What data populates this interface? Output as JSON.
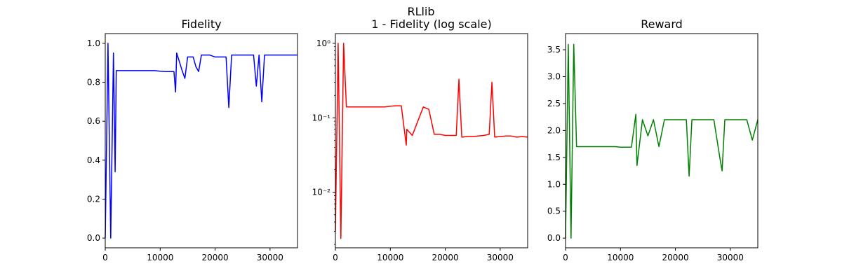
{
  "figure": {
    "suptitle": "RLlib",
    "background": "#ffffff"
  },
  "chart_data": [
    {
      "type": "line",
      "title": "Fidelity",
      "xlabel": "",
      "ylabel": "",
      "xlim": [
        0,
        35000
      ],
      "ylim": [
        -0.05,
        1.05
      ],
      "xscale": "linear",
      "yscale": "linear",
      "grid": false,
      "xticks": [
        0,
        10000,
        20000,
        30000
      ],
      "xtick_labels": [
        "0",
        "10000",
        "20000",
        "30000"
      ],
      "yticks": [
        0.0,
        0.2,
        0.4,
        0.6,
        0.8,
        1.0
      ],
      "ytick_labels": [
        "0.0",
        "0.2",
        "0.4",
        "0.6",
        "0.8",
        "1.0"
      ],
      "series": [
        {
          "color": "#0000ff",
          "x": [
            0,
            500,
            1000,
            1500,
            1800,
            2000,
            3000,
            4000,
            5000,
            6000,
            7000,
            8000,
            9000,
            10000,
            11000,
            12000,
            12500,
            12800,
            13000,
            14000,
            14500,
            15000,
            16000,
            16500,
            17000,
            17500,
            18000,
            19000,
            20000,
            21000,
            22000,
            22500,
            23000,
            24000,
            25000,
            26000,
            27000,
            27500,
            28000,
            28500,
            29000,
            30000,
            31000,
            32000,
            33000,
            34000,
            35000
          ],
          "y": [
            0.0,
            1.0,
            0.0,
            0.95,
            0.34,
            0.86,
            0.86,
            0.86,
            0.86,
            0.86,
            0.86,
            0.86,
            0.86,
            0.857,
            0.855,
            0.855,
            0.855,
            0.75,
            0.95,
            0.86,
            0.82,
            0.93,
            0.93,
            0.88,
            0.855,
            0.94,
            0.94,
            0.94,
            0.93,
            0.93,
            0.93,
            0.67,
            0.94,
            0.94,
            0.94,
            0.94,
            0.94,
            0.78,
            0.94,
            0.7,
            0.94,
            0.94,
            0.94,
            0.94,
            0.94,
            0.94,
            0.94
          ]
        }
      ]
    },
    {
      "type": "line",
      "title": "1 - Fidelity (log scale)",
      "xlabel": "",
      "ylabel": "",
      "xlim": [
        0,
        35000
      ],
      "ylim": [
        0.0018,
        1.35
      ],
      "xscale": "linear",
      "yscale": "log",
      "grid": false,
      "xticks": [
        0,
        10000,
        20000,
        30000
      ],
      "xtick_labels": [
        "0",
        "10000",
        "20000",
        "30000"
      ],
      "yticks": [
        0.01,
        0.1,
        1.0
      ],
      "ytick_labels": [
        "10⁻²",
        "10⁻¹",
        "10⁰"
      ],
      "series": [
        {
          "color": "#ff0000",
          "x": [
            0,
            500,
            1000,
            1500,
            2000,
            3000,
            4000,
            5000,
            6000,
            7000,
            8000,
            9000,
            10000,
            11000,
            12000,
            12900,
            13000,
            14000,
            15000,
            16000,
            17000,
            18000,
            19000,
            20000,
            21000,
            22000,
            22500,
            23000,
            24000,
            25000,
            26000,
            27000,
            28000,
            28500,
            29000,
            30000,
            31000,
            32000,
            33000,
            34000,
            35000
          ],
          "y": [
            0.003,
            1.0,
            0.0024,
            1.0,
            0.14,
            0.14,
            0.14,
            0.14,
            0.14,
            0.14,
            0.14,
            0.14,
            0.143,
            0.145,
            0.145,
            0.043,
            0.07,
            0.058,
            0.09,
            0.14,
            0.13,
            0.06,
            0.06,
            0.058,
            0.058,
            0.058,
            0.33,
            0.055,
            0.056,
            0.056,
            0.057,
            0.058,
            0.06,
            0.3,
            0.055,
            0.056,
            0.057,
            0.057,
            0.055,
            0.056,
            0.055
          ]
        }
      ]
    },
    {
      "type": "line",
      "title": "Reward",
      "xlabel": "",
      "ylabel": "",
      "xlim": [
        0,
        35000
      ],
      "ylim": [
        -0.18,
        3.8
      ],
      "xscale": "linear",
      "yscale": "linear",
      "grid": false,
      "xticks": [
        0,
        10000,
        20000,
        30000
      ],
      "xtick_labels": [
        "0",
        "10000",
        "20000",
        "30000"
      ],
      "yticks": [
        0.0,
        0.5,
        1.0,
        1.5,
        2.0,
        2.5,
        3.0,
        3.5
      ],
      "ytick_labels": [
        "0.0",
        "0.5",
        "1.0",
        "1.5",
        "2.0",
        "2.5",
        "3.0",
        "3.5"
      ],
      "series": [
        {
          "color": "#008000",
          "x": [
            0,
            500,
            1000,
            1500,
            2000,
            3000,
            4000,
            5000,
            6000,
            7000,
            8000,
            9000,
            10000,
            11000,
            12000,
            12800,
            13000,
            14000,
            15000,
            16000,
            17000,
            18000,
            19000,
            20000,
            21000,
            22000,
            22500,
            23000,
            24000,
            25000,
            26000,
            27000,
            28000,
            28500,
            29000,
            30000,
            31000,
            32000,
            33000,
            34000,
            35000
          ],
          "y": [
            0.0,
            3.6,
            0.0,
            3.6,
            1.7,
            1.7,
            1.7,
            1.7,
            1.7,
            1.7,
            1.7,
            1.7,
            1.69,
            1.69,
            1.69,
            2.3,
            1.35,
            2.2,
            1.9,
            2.2,
            1.7,
            2.2,
            2.2,
            2.2,
            2.2,
            2.2,
            1.15,
            2.2,
            2.2,
            2.2,
            2.2,
            2.2,
            1.55,
            1.25,
            2.2,
            2.2,
            2.2,
            2.2,
            2.2,
            1.82,
            2.2
          ]
        }
      ]
    }
  ]
}
